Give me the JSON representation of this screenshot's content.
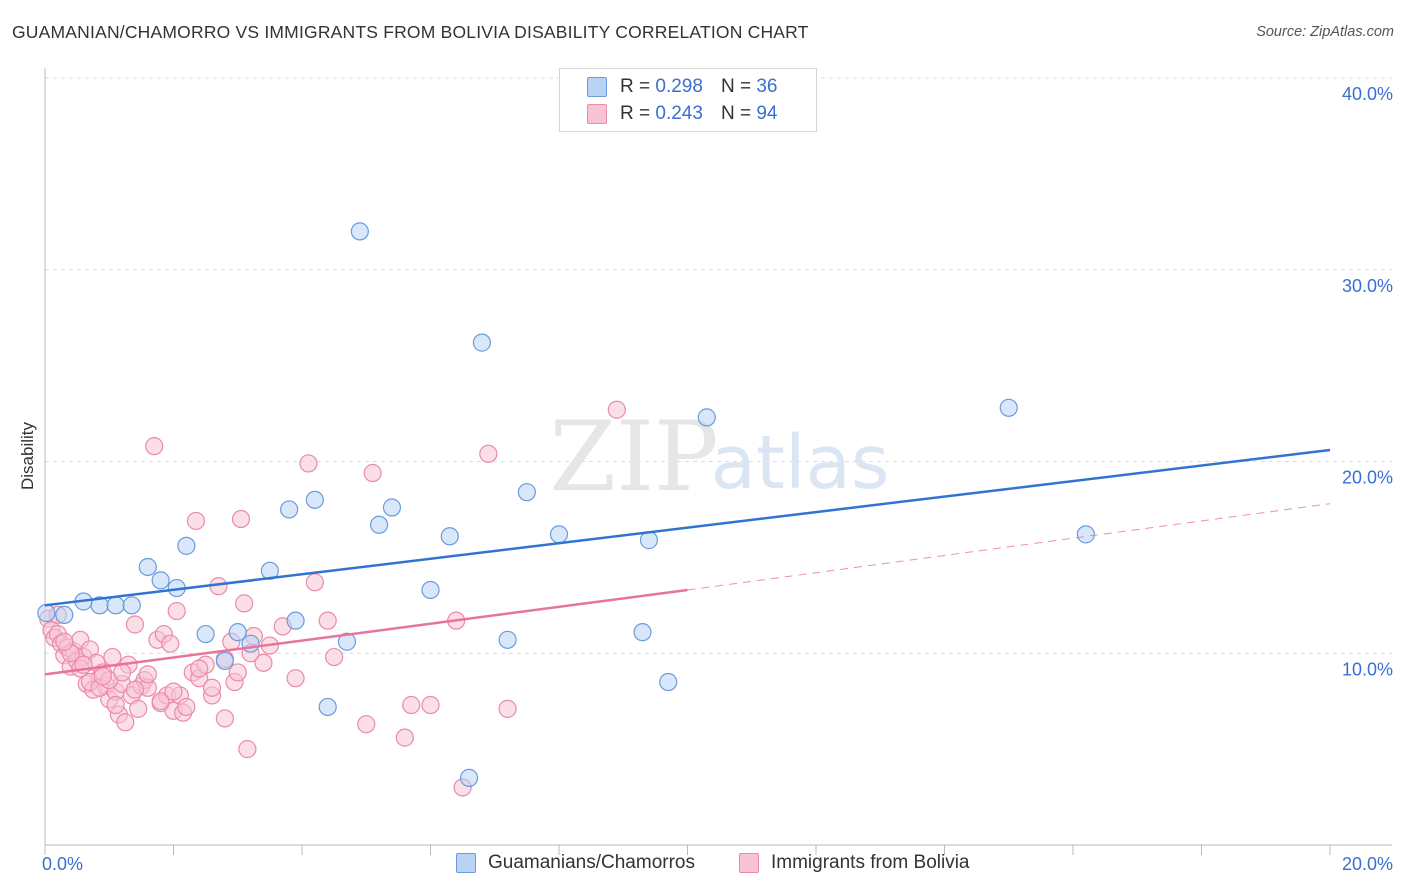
{
  "title": "GUAMANIAN/CHAMORRO VS IMMIGRANTS FROM BOLIVIA DISABILITY CORRELATION CHART",
  "source": "Source: ZipAtlas.com",
  "watermark": {
    "zip": "ZIP",
    "atlas": "atlas"
  },
  "colors": {
    "blue_fill": "#b9d3f5",
    "blue_stroke": "#6b9bdc",
    "blue_line": "#2f74d0",
    "pink_fill": "#f8c4d4",
    "pink_stroke": "#eb8aaa",
    "pink_line": "#e8739b",
    "tick_label": "#3a6fd1"
  },
  "legend": {
    "r_label": "R =",
    "n_label": "N =",
    "series": [
      {
        "name": "Guamanians/Chamorros",
        "r": "0.298",
        "n": "36"
      },
      {
        "name": "Immigrants from Bolivia",
        "r": "0.243",
        "n": "94"
      }
    ]
  },
  "chart_data": {
    "type": "scatter",
    "title": "GUAMANIAN/CHAMORRO VS IMMIGRANTS FROM BOLIVIA DISABILITY CORRELATION CHART",
    "xlabel": "",
    "ylabel": "Disability",
    "xlim": [
      0,
      20
    ],
    "ylim": [
      0,
      40
    ],
    "x_tick_labels": [
      "0.0%",
      "20.0%"
    ],
    "y_ticks": [
      10,
      20,
      30,
      40
    ],
    "y_tick_labels": [
      "10.0%",
      "20.0%",
      "30.0%",
      "40.0%"
    ],
    "series": [
      {
        "name": "Guamanians/Chamorros",
        "r": 0.298,
        "n": 36,
        "trend": {
          "x": [
            0,
            20
          ],
          "y": [
            12.5,
            20.6
          ],
          "style": "solid"
        },
        "points": [
          [
            0.02,
            12.1
          ],
          [
            0.3,
            12.0
          ],
          [
            0.6,
            12.7
          ],
          [
            0.85,
            12.5
          ],
          [
            1.1,
            12.5
          ],
          [
            1.35,
            12.5
          ],
          [
            1.6,
            14.5
          ],
          [
            1.8,
            13.8
          ],
          [
            2.05,
            13.4
          ],
          [
            2.2,
            15.6
          ],
          [
            2.5,
            11.0
          ],
          [
            2.8,
            9.6
          ],
          [
            3.0,
            11.1
          ],
          [
            3.2,
            10.5
          ],
          [
            3.5,
            14.3
          ],
          [
            3.8,
            17.5
          ],
          [
            3.9,
            11.7
          ],
          [
            4.2,
            18.0
          ],
          [
            4.4,
            7.2
          ],
          [
            4.7,
            10.6
          ],
          [
            4.9,
            32.0
          ],
          [
            5.2,
            16.7
          ],
          [
            5.4,
            17.6
          ],
          [
            6.0,
            13.3
          ],
          [
            6.3,
            16.1
          ],
          [
            6.6,
            3.5
          ],
          [
            6.8,
            26.2
          ],
          [
            7.2,
            10.7
          ],
          [
            7.5,
            18.4
          ],
          [
            8.0,
            16.2
          ],
          [
            9.3,
            11.1
          ],
          [
            9.4,
            15.9
          ],
          [
            9.7,
            8.5
          ],
          [
            10.3,
            22.3
          ],
          [
            15.0,
            22.8
          ],
          [
            16.2,
            16.2
          ]
        ]
      },
      {
        "name": "Immigrants from Bolivia",
        "r": 0.243,
        "n": 94,
        "trend": {
          "x": [
            0,
            10
          ],
          "y": [
            8.9,
            13.3
          ],
          "x_dashed": [
            10,
            20
          ],
          "y_dashed": [
            13.3,
            17.8
          ],
          "style": "solid-then-dashed"
        },
        "points": [
          [
            0.05,
            11.8
          ],
          [
            0.1,
            11.2
          ],
          [
            0.15,
            10.8
          ],
          [
            0.2,
            11.0
          ],
          [
            0.25,
            10.5
          ],
          [
            0.3,
            9.9
          ],
          [
            0.35,
            10.3
          ],
          [
            0.4,
            9.3
          ],
          [
            0.45,
            10.1
          ],
          [
            0.5,
            9.6
          ],
          [
            0.55,
            10.7
          ],
          [
            0.6,
            9.8
          ],
          [
            0.65,
            8.4
          ],
          [
            0.7,
            10.2
          ],
          [
            0.75,
            8.1
          ],
          [
            0.8,
            9.5
          ],
          [
            0.85,
            8.7
          ],
          [
            0.9,
            9.0
          ],
          [
            0.95,
            8.3
          ],
          [
            1.0,
            7.6
          ],
          [
            1.05,
            9.8
          ],
          [
            1.1,
            8.0
          ],
          [
            1.15,
            6.8
          ],
          [
            1.2,
            8.4
          ],
          [
            1.25,
            6.4
          ],
          [
            1.3,
            9.4
          ],
          [
            1.35,
            7.8
          ],
          [
            1.4,
            11.5
          ],
          [
            1.45,
            7.1
          ],
          [
            1.5,
            8.3
          ],
          [
            1.55,
            8.6
          ],
          [
            1.6,
            8.2
          ],
          [
            1.7,
            20.8
          ],
          [
            1.75,
            10.7
          ],
          [
            1.8,
            7.4
          ],
          [
            1.85,
            11.0
          ],
          [
            1.9,
            7.8
          ],
          [
            1.95,
            10.5
          ],
          [
            2.0,
            7.0
          ],
          [
            2.05,
            12.2
          ],
          [
            2.1,
            7.8
          ],
          [
            2.15,
            6.9
          ],
          [
            2.3,
            9.0
          ],
          [
            2.35,
            16.9
          ],
          [
            2.4,
            8.7
          ],
          [
            2.5,
            9.4
          ],
          [
            2.6,
            7.8
          ],
          [
            2.7,
            13.5
          ],
          [
            2.8,
            6.6
          ],
          [
            2.9,
            10.6
          ],
          [
            2.95,
            8.5
          ],
          [
            3.05,
            17.0
          ],
          [
            3.1,
            12.6
          ],
          [
            3.15,
            5.0
          ],
          [
            3.25,
            10.9
          ],
          [
            3.4,
            9.5
          ],
          [
            3.5,
            10.4
          ],
          [
            3.7,
            11.4
          ],
          [
            3.9,
            8.7
          ],
          [
            4.1,
            19.9
          ],
          [
            4.2,
            13.7
          ],
          [
            4.4,
            11.7
          ],
          [
            4.5,
            9.8
          ],
          [
            5.0,
            6.3
          ],
          [
            5.1,
            19.4
          ],
          [
            5.6,
            5.6
          ],
          [
            5.7,
            7.3
          ],
          [
            6.0,
            7.3
          ],
          [
            6.4,
            11.7
          ],
          [
            6.5,
            3.0
          ],
          [
            6.9,
            20.4
          ],
          [
            7.2,
            7.1
          ],
          [
            8.9,
            22.7
          ],
          [
            0.2,
            12.0
          ],
          [
            0.4,
            10.0
          ],
          [
            0.55,
            9.2
          ],
          [
            0.7,
            8.5
          ],
          [
            0.85,
            8.2
          ],
          [
            1.0,
            8.6
          ],
          [
            1.2,
            9.0
          ],
          [
            1.4,
            8.1
          ],
          [
            1.6,
            8.9
          ],
          [
            1.8,
            7.5
          ],
          [
            2.0,
            8.0
          ],
          [
            2.2,
            7.2
          ],
          [
            2.4,
            9.2
          ],
          [
            2.6,
            8.2
          ],
          [
            2.8,
            9.7
          ],
          [
            3.0,
            9.0
          ],
          [
            3.2,
            10.0
          ],
          [
            0.3,
            10.6
          ],
          [
            0.6,
            9.4
          ],
          [
            0.9,
            8.8
          ],
          [
            1.1,
            7.3
          ]
        ]
      }
    ]
  }
}
